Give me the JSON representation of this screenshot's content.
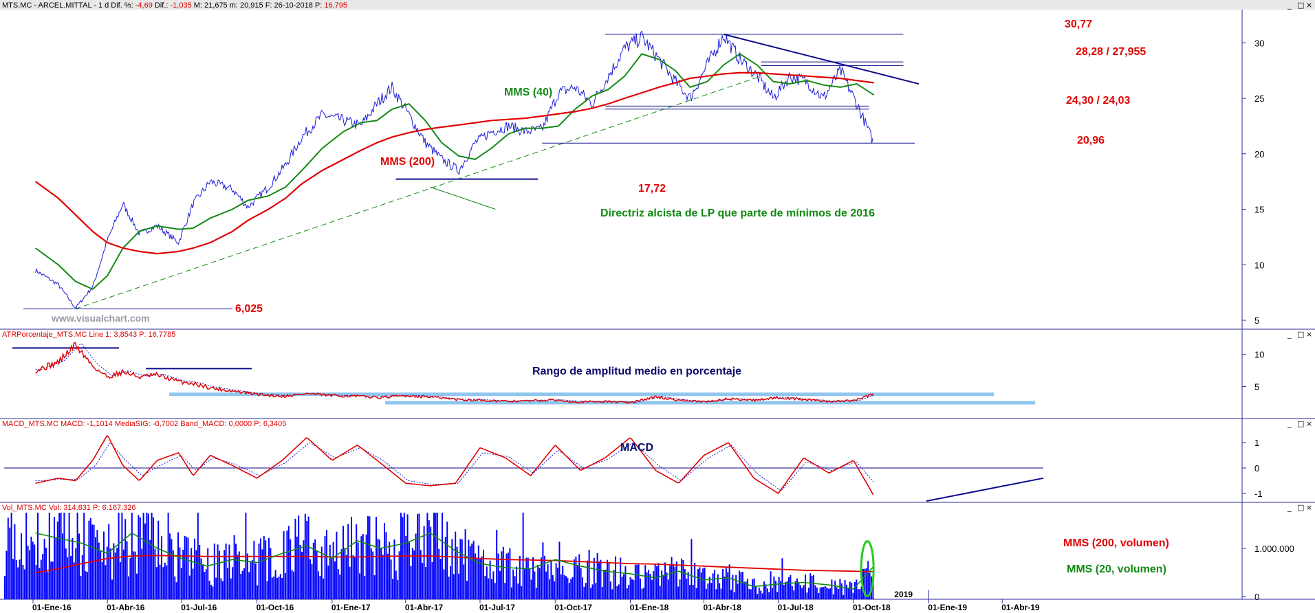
{
  "colors": {
    "red": "#e00000",
    "green": "#128a12",
    "navy": "#0a0a8c",
    "blue_bars": "#0000ff",
    "price_line": "#1a1ad8",
    "light_blue": "#8ec6ee",
    "axis": "#2a2a9a",
    "title_bar": "#e8e8e8"
  },
  "window_buttons": {
    "minimize": "_",
    "restore": "□",
    "close": "×"
  },
  "watermark": "www.visualchart.com",
  "price_panel": {
    "header": {
      "prefix": "MTS.MC - ARCEL.MITTAL -  1 d  Dif. %: ",
      "dif_pct": "-4,69",
      "dif_label": "  Dif.: ",
      "dif": "-1,035",
      "rest": "  M: 21,675  m: 20,915  F: 26-10-2018  P: ",
      "price": "16,795"
    },
    "y_ticks": [
      "5",
      "10",
      "15",
      "20",
      "25",
      "30"
    ],
    "labels": {
      "mms40": "MMS (40)",
      "mms200": "MMS (200)",
      "trendline": "Directriz alcista de LP que parte de mínimos de 2016",
      "low_2016": "6,025",
      "low_2017": "17,72",
      "high": "30,77",
      "resistance": "28,28 / 27,955",
      "support": "24,30 / 24,03",
      "last_low": "20,96"
    }
  },
  "atr_panel": {
    "header": {
      "name": "ATRPorcentaje_MTS.MC  Line 1: ",
      "line1": "3,8543",
      "p_label": "  P: ",
      "p": "16,7785"
    },
    "y_ticks": [
      "5",
      "10"
    ],
    "annotation": "Rango de amplitud medio en porcentaje"
  },
  "macd_panel": {
    "header": {
      "name": "MACD_MTS.MC  MACD: ",
      "macd": "-1,1014",
      "sig_label": "  MediaSIG: ",
      "sig": "-0,7002",
      "band_label": "  Band_MACD: ",
      "band": "0,0000",
      "p_label": "  P: ",
      "p": "6,3405"
    },
    "y_ticks": [
      "-1",
      "0",
      "1"
    ],
    "annotation": "MACD"
  },
  "volume_panel": {
    "header": {
      "name": "Vol_MTS.MC  Vol: ",
      "vol": "314.831",
      "p_label": "  P: ",
      "p": "6.167.326"
    },
    "y_ticks": [
      "0",
      "1.000.000"
    ],
    "annotation_200": "MMS (200, volumen)",
    "annotation_20": "MMS (20, volumen)",
    "year_marker": "2019"
  },
  "x_ticks": [
    "01-Ene-16",
    "01-Abr-16",
    "01-Jul-16",
    "01-Oct-16",
    "01-Ene-17",
    "01-Abr-17",
    "01-Jul-17",
    "01-Oct-17",
    "01-Ene-18",
    "01-Abr-18",
    "01-Jul-18",
    "01-Oct-18",
    "01-Ene-19",
    "01-Abr-19"
  ],
  "chart_data": [
    {
      "type": "line",
      "title": "MTS.MC - ARCEL.MITTAL - 1 d",
      "x_dates": [
        "2016-01-04",
        "2016-02-01",
        "2016-02-22",
        "2016-03-14",
        "2016-04-01",
        "2016-04-20",
        "2016-05-10",
        "2016-06-01",
        "2016-06-27",
        "2016-07-15",
        "2016-08-05",
        "2016-09-01",
        "2016-09-20",
        "2016-10-15",
        "2016-11-05",
        "2016-11-25",
        "2016-12-20",
        "2017-01-15",
        "2017-02-05",
        "2017-02-25",
        "2017-03-15",
        "2017-04-05",
        "2017-04-25",
        "2017-05-15",
        "2017-06-05",
        "2017-06-25",
        "2017-07-15",
        "2017-08-05",
        "2017-08-25",
        "2017-09-15",
        "2017-10-05",
        "2017-10-25",
        "2017-11-15",
        "2017-12-05",
        "2017-12-25",
        "2018-01-15",
        "2018-02-05",
        "2018-02-25",
        "2018-03-15",
        "2018-04-05",
        "2018-04-25",
        "2018-05-15",
        "2018-06-05",
        "2018-06-25",
        "2018-07-15",
        "2018-08-05",
        "2018-08-25",
        "2018-09-15",
        "2018-10-05",
        "2018-10-26"
      ],
      "series": [
        {
          "name": "MTS.MC",
          "values": [
            9.5,
            8.2,
            6.1,
            8.0,
            12.2,
            15.5,
            12.8,
            13.5,
            12.0,
            15.5,
            17.5,
            16.8,
            15.2,
            17.0,
            19.0,
            21.5,
            23.5,
            23.0,
            22.5,
            24.5,
            26.0,
            23.5,
            21.0,
            19.5,
            18.5,
            21.0,
            22.0,
            22.5,
            22.0,
            22.2,
            25.5,
            26.0,
            24.5,
            27.0,
            29.5,
            30.5,
            28.5,
            26.5,
            25.0,
            28.0,
            30.7,
            28.5,
            27.0,
            25.0,
            27.0,
            26.5,
            25.0,
            27.5,
            24.5,
            20.96
          ]
        },
        {
          "name": "MMS (40)",
          "values": [
            11.5,
            10.0,
            8.5,
            7.8,
            9.0,
            11.5,
            13.0,
            13.5,
            13.2,
            13.3,
            14.2,
            15.0,
            15.8,
            16.2,
            17.0,
            18.5,
            20.5,
            22.0,
            22.8,
            23.0,
            24.0,
            24.5,
            23.0,
            21.0,
            19.8,
            19.5,
            20.5,
            21.8,
            22.3,
            22.3,
            22.5,
            24.0,
            25.2,
            25.8,
            27.0,
            29.0,
            28.5,
            27.5,
            26.0,
            26.5,
            28.0,
            29.0,
            28.0,
            26.5,
            26.3,
            26.6,
            26.2,
            26.0,
            26.3,
            25.3
          ]
        },
        {
          "name": "MMS (200)",
          "values": [
            17.5,
            16.0,
            14.5,
            13.0,
            12.0,
            11.5,
            11.2,
            11.0,
            11.2,
            11.5,
            12.0,
            13.0,
            14.0,
            15.0,
            16.0,
            17.3,
            18.5,
            19.5,
            20.3,
            21.0,
            21.5,
            21.9,
            22.2,
            22.4,
            22.6,
            22.8,
            23.0,
            23.1,
            23.2,
            23.4,
            23.6,
            23.8,
            24.1,
            24.5,
            25.0,
            25.5,
            26.0,
            26.4,
            26.8,
            27.0,
            27.2,
            27.3,
            27.3,
            27.2,
            27.1,
            27.0,
            26.9,
            26.8,
            26.6,
            26.4
          ]
        }
      ],
      "ylim": [
        5,
        32
      ],
      "annotations": {
        "horizontal_levels": [
          30.77,
          28.28,
          27.955,
          24.3,
          24.03,
          20.96,
          17.72,
          6.025
        ],
        "trendline": {
          "from": [
            "2016-02-22",
            6.025
          ],
          "to": [
            "2018-06-10",
            27.0
          ]
        },
        "downtrend": {
          "from": [
            "2018-04-25",
            30.77
          ],
          "to": [
            "2018-12-20",
            26.3
          ]
        }
      }
    },
    {
      "type": "line",
      "title": "ATRPorcentaje_MTS.MC",
      "x_dates": [
        "2016-01-04",
        "2016-02-01",
        "2016-02-22",
        "2016-03-14",
        "2016-04-01",
        "2016-04-20",
        "2016-05-10",
        "2016-06-01",
        "2016-06-27",
        "2016-07-15",
        "2016-08-05",
        "2016-09-01",
        "2016-10-01",
        "2016-11-01",
        "2016-12-01",
        "2017-01-01",
        "2017-02-01",
        "2017-03-01",
        "2017-04-01",
        "2017-05-01",
        "2017-06-01",
        "2017-07-01",
        "2017-08-01",
        "2017-09-01",
        "2017-10-01",
        "2017-11-01",
        "2017-12-01",
        "2018-01-01",
        "2018-02-01",
        "2018-03-01",
        "2018-04-01",
        "2018-05-01",
        "2018-06-01",
        "2018-07-01",
        "2018-08-01",
        "2018-09-01",
        "2018-10-01",
        "2018-10-26"
      ],
      "series": [
        {
          "name": "Line 1",
          "values": [
            7.5,
            8.8,
            11.5,
            8.2,
            6.5,
            7.3,
            6.5,
            6.8,
            5.8,
            5.5,
            4.8,
            4.3,
            3.8,
            3.5,
            3.9,
            3.6,
            3.5,
            3.3,
            3.6,
            3.4,
            3.0,
            2.9,
            2.7,
            2.8,
            2.9,
            2.6,
            2.7,
            2.5,
            3.4,
            2.9,
            2.6,
            3.1,
            2.9,
            3.3,
            3.0,
            2.7,
            2.8,
            3.85
          ]
        }
      ],
      "ylim": [
        1,
        12
      ]
    },
    {
      "type": "line",
      "title": "MACD_MTS.MC",
      "x_dates": [
        "2016-01-04",
        "2016-02-01",
        "2016-02-22",
        "2016-03-14",
        "2016-04-01",
        "2016-04-20",
        "2016-05-10",
        "2016-06-01",
        "2016-06-27",
        "2016-07-15",
        "2016-08-05",
        "2016-09-01",
        "2016-10-01",
        "2016-11-01",
        "2016-12-01",
        "2017-01-01",
        "2017-02-01",
        "2017-03-01",
        "2017-04-01",
        "2017-05-01",
        "2017-06-01",
        "2017-07-01",
        "2017-08-01",
        "2017-09-01",
        "2017-10-01",
        "2017-11-01",
        "2017-12-01",
        "2018-01-01",
        "2018-02-01",
        "2018-03-01",
        "2018-04-01",
        "2018-05-01",
        "2018-06-01",
        "2018-07-01",
        "2018-08-01",
        "2018-09-01",
        "2018-10-01",
        "2018-10-26"
      ],
      "series": [
        {
          "name": "MACD",
          "values": [
            -0.6,
            -0.4,
            -0.5,
            0.3,
            1.3,
            0.1,
            -0.5,
            0.3,
            0.6,
            -0.3,
            0.5,
            0.1,
            -0.4,
            0.3,
            1.2,
            0.3,
            0.9,
            0.2,
            -0.6,
            -0.7,
            -0.6,
            0.8,
            0.4,
            -0.3,
            0.9,
            -0.1,
            0.4,
            1.2,
            -0.1,
            -0.6,
            0.5,
            1.0,
            -0.4,
            -1.0,
            0.4,
            -0.2,
            0.3,
            -1.1
          ]
        },
        {
          "name": "MediaSIG",
          "values": [
            -0.5,
            -0.45,
            -0.45,
            0.1,
            1.0,
            0.3,
            -0.3,
            0.1,
            0.5,
            -0.1,
            0.4,
            0.15,
            -0.3,
            0.2,
            1.0,
            0.4,
            0.8,
            0.3,
            -0.5,
            -0.65,
            -0.6,
            0.6,
            0.45,
            -0.2,
            0.7,
            0.0,
            0.35,
            1.0,
            0.1,
            -0.5,
            0.35,
            0.9,
            -0.2,
            -0.9,
            0.25,
            -0.1,
            0.25,
            -0.7
          ]
        }
      ],
      "ylim": [
        -1.5,
        1.5
      ]
    },
    {
      "type": "bar",
      "title": "Vol_MTS.MC",
      "x_dates": [
        "2016-01-04",
        "2016-02-01",
        "2016-03-01",
        "2016-04-01",
        "2016-05-01",
        "2016-06-01",
        "2016-07-01",
        "2016-08-01",
        "2016-09-01",
        "2016-10-01",
        "2016-11-01",
        "2016-12-01",
        "2017-01-01",
        "2017-02-01",
        "2017-03-01",
        "2017-04-01",
        "2017-05-01",
        "2017-06-01",
        "2017-07-01",
        "2017-08-01",
        "2017-09-01",
        "2017-10-01",
        "2017-11-01",
        "2017-12-01",
        "2018-01-01",
        "2018-02-01",
        "2018-03-01",
        "2018-04-01",
        "2018-05-01",
        "2018-06-01",
        "2018-07-01",
        "2018-08-01",
        "2018-09-01",
        "2018-10-01",
        "2018-10-26"
      ],
      "series": [
        {
          "name": "MMS (200, volumen)",
          "values": [
            520000,
            600000,
            700000,
            800000,
            850000,
            860000,
            850000,
            840000,
            840000,
            840000,
            840000,
            840000,
            830000,
            830000,
            840000,
            850000,
            850000,
            830000,
            800000,
            780000,
            770000,
            760000,
            740000,
            720000,
            700000,
            690000,
            670000,
            650000,
            630000,
            610000,
            590000,
            570000,
            560000,
            550000,
            540000
          ]
        },
        {
          "name": "MMS (20, volumen)",
          "values": [
            1300000,
            1200000,
            1100000,
            900000,
            1300000,
            1000000,
            800000,
            650000,
            780000,
            720000,
            900000,
            1050000,
            800000,
            1150000,
            1000000,
            1100000,
            1300000,
            950000,
            700000,
            620000,
            600000,
            780000,
            650000,
            550000,
            500000,
            420000,
            550000,
            380000,
            420000,
            250000,
            300000,
            330000,
            280000,
            200000,
            650000
          ]
        }
      ],
      "last_volume": 314831,
      "ylim": [
        0,
        1700000
      ]
    }
  ]
}
